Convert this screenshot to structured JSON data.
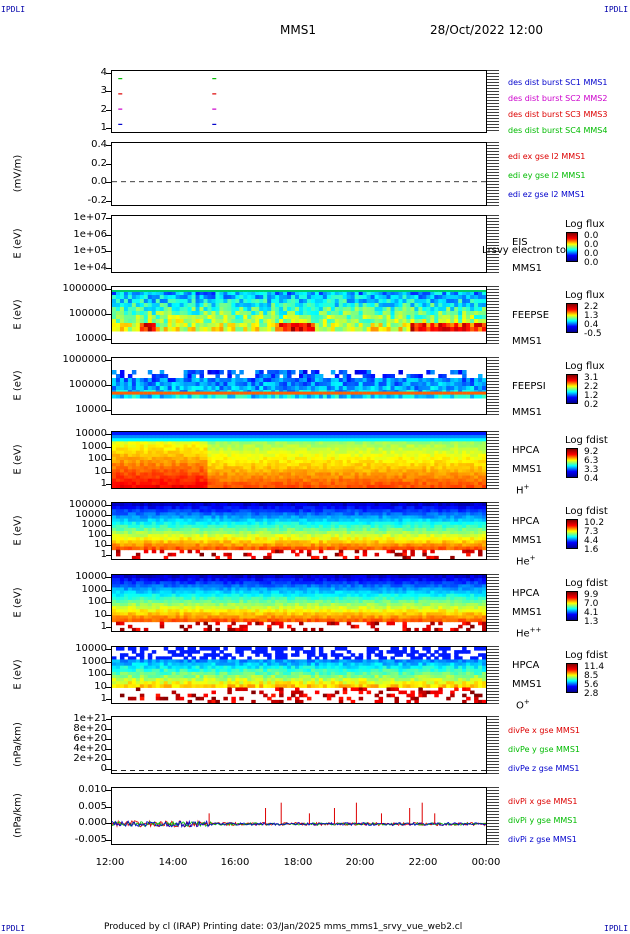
{
  "corners": {
    "tl": "IPDLI",
    "tr": "IPDLI",
    "bl": "IPDLI",
    "br": "IPDLI"
  },
  "header": {
    "mission": "MMS1",
    "datetime": "28/Oct/2022 12:00"
  },
  "footer": {
    "text": "Produced by cl (IRAP)   Printing date: 03/Jan/2025   mms_mms1_srvy_vue_web2.cl"
  },
  "xaxis": {
    "ticks": [
      "12:00",
      "14:00",
      "16:00",
      "18:00",
      "20:00",
      "22:00",
      "00:00"
    ]
  },
  "colors": {
    "blue": "#0000cc",
    "magenta": "#cc00cc",
    "red": "#dd0000",
    "green": "#00bb00"
  },
  "chart_data": [
    {
      "type": "scatter",
      "id": "burst",
      "yticks": [
        "4",
        "3",
        "2",
        "1"
      ],
      "ylim": [
        0.5,
        4.5
      ],
      "legend": [
        "des dist burst SC1 MMS1",
        "des dist burst SC2 MMS2",
        "des dist burst SC3 MMS3",
        "des dist burst SC4 MMS4"
      ],
      "x_hours": [
        12.2,
        15.2
      ],
      "levels": [
        1,
        2,
        3,
        4
      ]
    },
    {
      "type": "line",
      "id": "edi",
      "ylabel": "(mV/m)",
      "yticks": [
        "0.4",
        "0.2",
        "0.0",
        "-0.2"
      ],
      "ylim": [
        -0.3,
        0.5
      ],
      "legend": [
        "edi ex gse l2 MMS1",
        "edi ey gse l2 MMS1",
        "edi ez gse l2 MMS1"
      ]
    },
    {
      "type": "heatmap",
      "id": "eis",
      "ylabel": "E (eV)",
      "yticks": [
        "1e+07",
        "1e+06",
        "1e+05",
        "1e+04"
      ],
      "instrument": [
        "EIS",
        "MMS1"
      ],
      "overlay": "Lrsvy electron to",
      "cbar_title": "Log flux",
      "cbar_values": [
        "0.0",
        "0.0",
        "0.0",
        "0.0"
      ]
    },
    {
      "type": "heatmap",
      "id": "feepse",
      "ylabel": "E (eV)",
      "yticks": [
        "1000000",
        "100000",
        "10000"
      ],
      "instrument": [
        "FEEPSE",
        "MMS1"
      ],
      "cbar_title": "Log flux",
      "cbar_values": [
        "2.2",
        "1.3",
        "0.4",
        "-0.5"
      ]
    },
    {
      "type": "heatmap",
      "id": "feepsi",
      "ylabel": "E (eV)",
      "yticks": [
        "1000000",
        "100000",
        "10000"
      ],
      "instrument": [
        "FEEPSI",
        "MMS1"
      ],
      "cbar_title": "Log flux",
      "cbar_values": [
        "3.1",
        "2.2",
        "1.2",
        "0.2"
      ]
    },
    {
      "type": "heatmap",
      "id": "hpca_h",
      "ylabel": "E (eV)",
      "yticks": [
        "10000",
        "1000",
        "100",
        "10",
        "1"
      ],
      "instrument": [
        "HPCA",
        "MMS1",
        "H",
        "+"
      ],
      "cbar_title": "Log fdist",
      "cbar_values": [
        "9.2",
        "6.3",
        "3.3",
        "0.4"
      ]
    },
    {
      "type": "heatmap",
      "id": "hpca_he",
      "ylabel": "E (eV)",
      "yticks": [
        "100000",
        "10000",
        "1000",
        "100",
        "10",
        "1"
      ],
      "instrument": [
        "HPCA",
        "MMS1",
        "He",
        "+"
      ],
      "cbar_title": "Log fdist",
      "cbar_values": [
        "10.2",
        "7.3",
        "4.4",
        "1.6"
      ]
    },
    {
      "type": "heatmap",
      "id": "hpca_hepp",
      "ylabel": "E (eV)",
      "yticks": [
        "10000",
        "1000",
        "100",
        "10",
        "1"
      ],
      "instrument": [
        "HPCA",
        "MMS1",
        "He",
        "++"
      ],
      "cbar_title": "Log fdist",
      "cbar_values": [
        "9.9",
        "7.0",
        "4.1",
        "1.3"
      ]
    },
    {
      "type": "heatmap",
      "id": "hpca_o",
      "ylabel": "E (eV)",
      "yticks": [
        "10000",
        "1000",
        "100",
        "10",
        "1"
      ],
      "instrument": [
        "HPCA",
        "MMS1",
        "O",
        "+"
      ],
      "cbar_title": "Log fdist",
      "cbar_values": [
        "11.4",
        "8.5",
        "5.6",
        "2.8"
      ]
    },
    {
      "type": "line",
      "id": "divpe",
      "ylabel": "(nPa/km)",
      "yticks": [
        "1e+21",
        "8e+20",
        "6e+20",
        "4e+20",
        "2e+20",
        "0"
      ],
      "ylim": [
        -5e+19,
        1.05e+21
      ],
      "legend": [
        "divPe x gse MMS1",
        "divPe y gse MMS1",
        "divPe z gse MMS1"
      ]
    },
    {
      "type": "line",
      "id": "divpi",
      "ylabel": "(nPa/km)",
      "yticks": [
        "0.010",
        "0.005",
        "0.000",
        "-0.005"
      ],
      "ylim": [
        -0.0075,
        0.0135
      ],
      "legend": [
        "divPi x gse MMS1",
        "divPi y gse MMS1",
        "divPi z gse MMS1"
      ],
      "spikes_hours": [
        15.1,
        16.9,
        17.4,
        18.3,
        19.1,
        19.8,
        20.6,
        21.5,
        21.9,
        22.3
      ]
    }
  ]
}
